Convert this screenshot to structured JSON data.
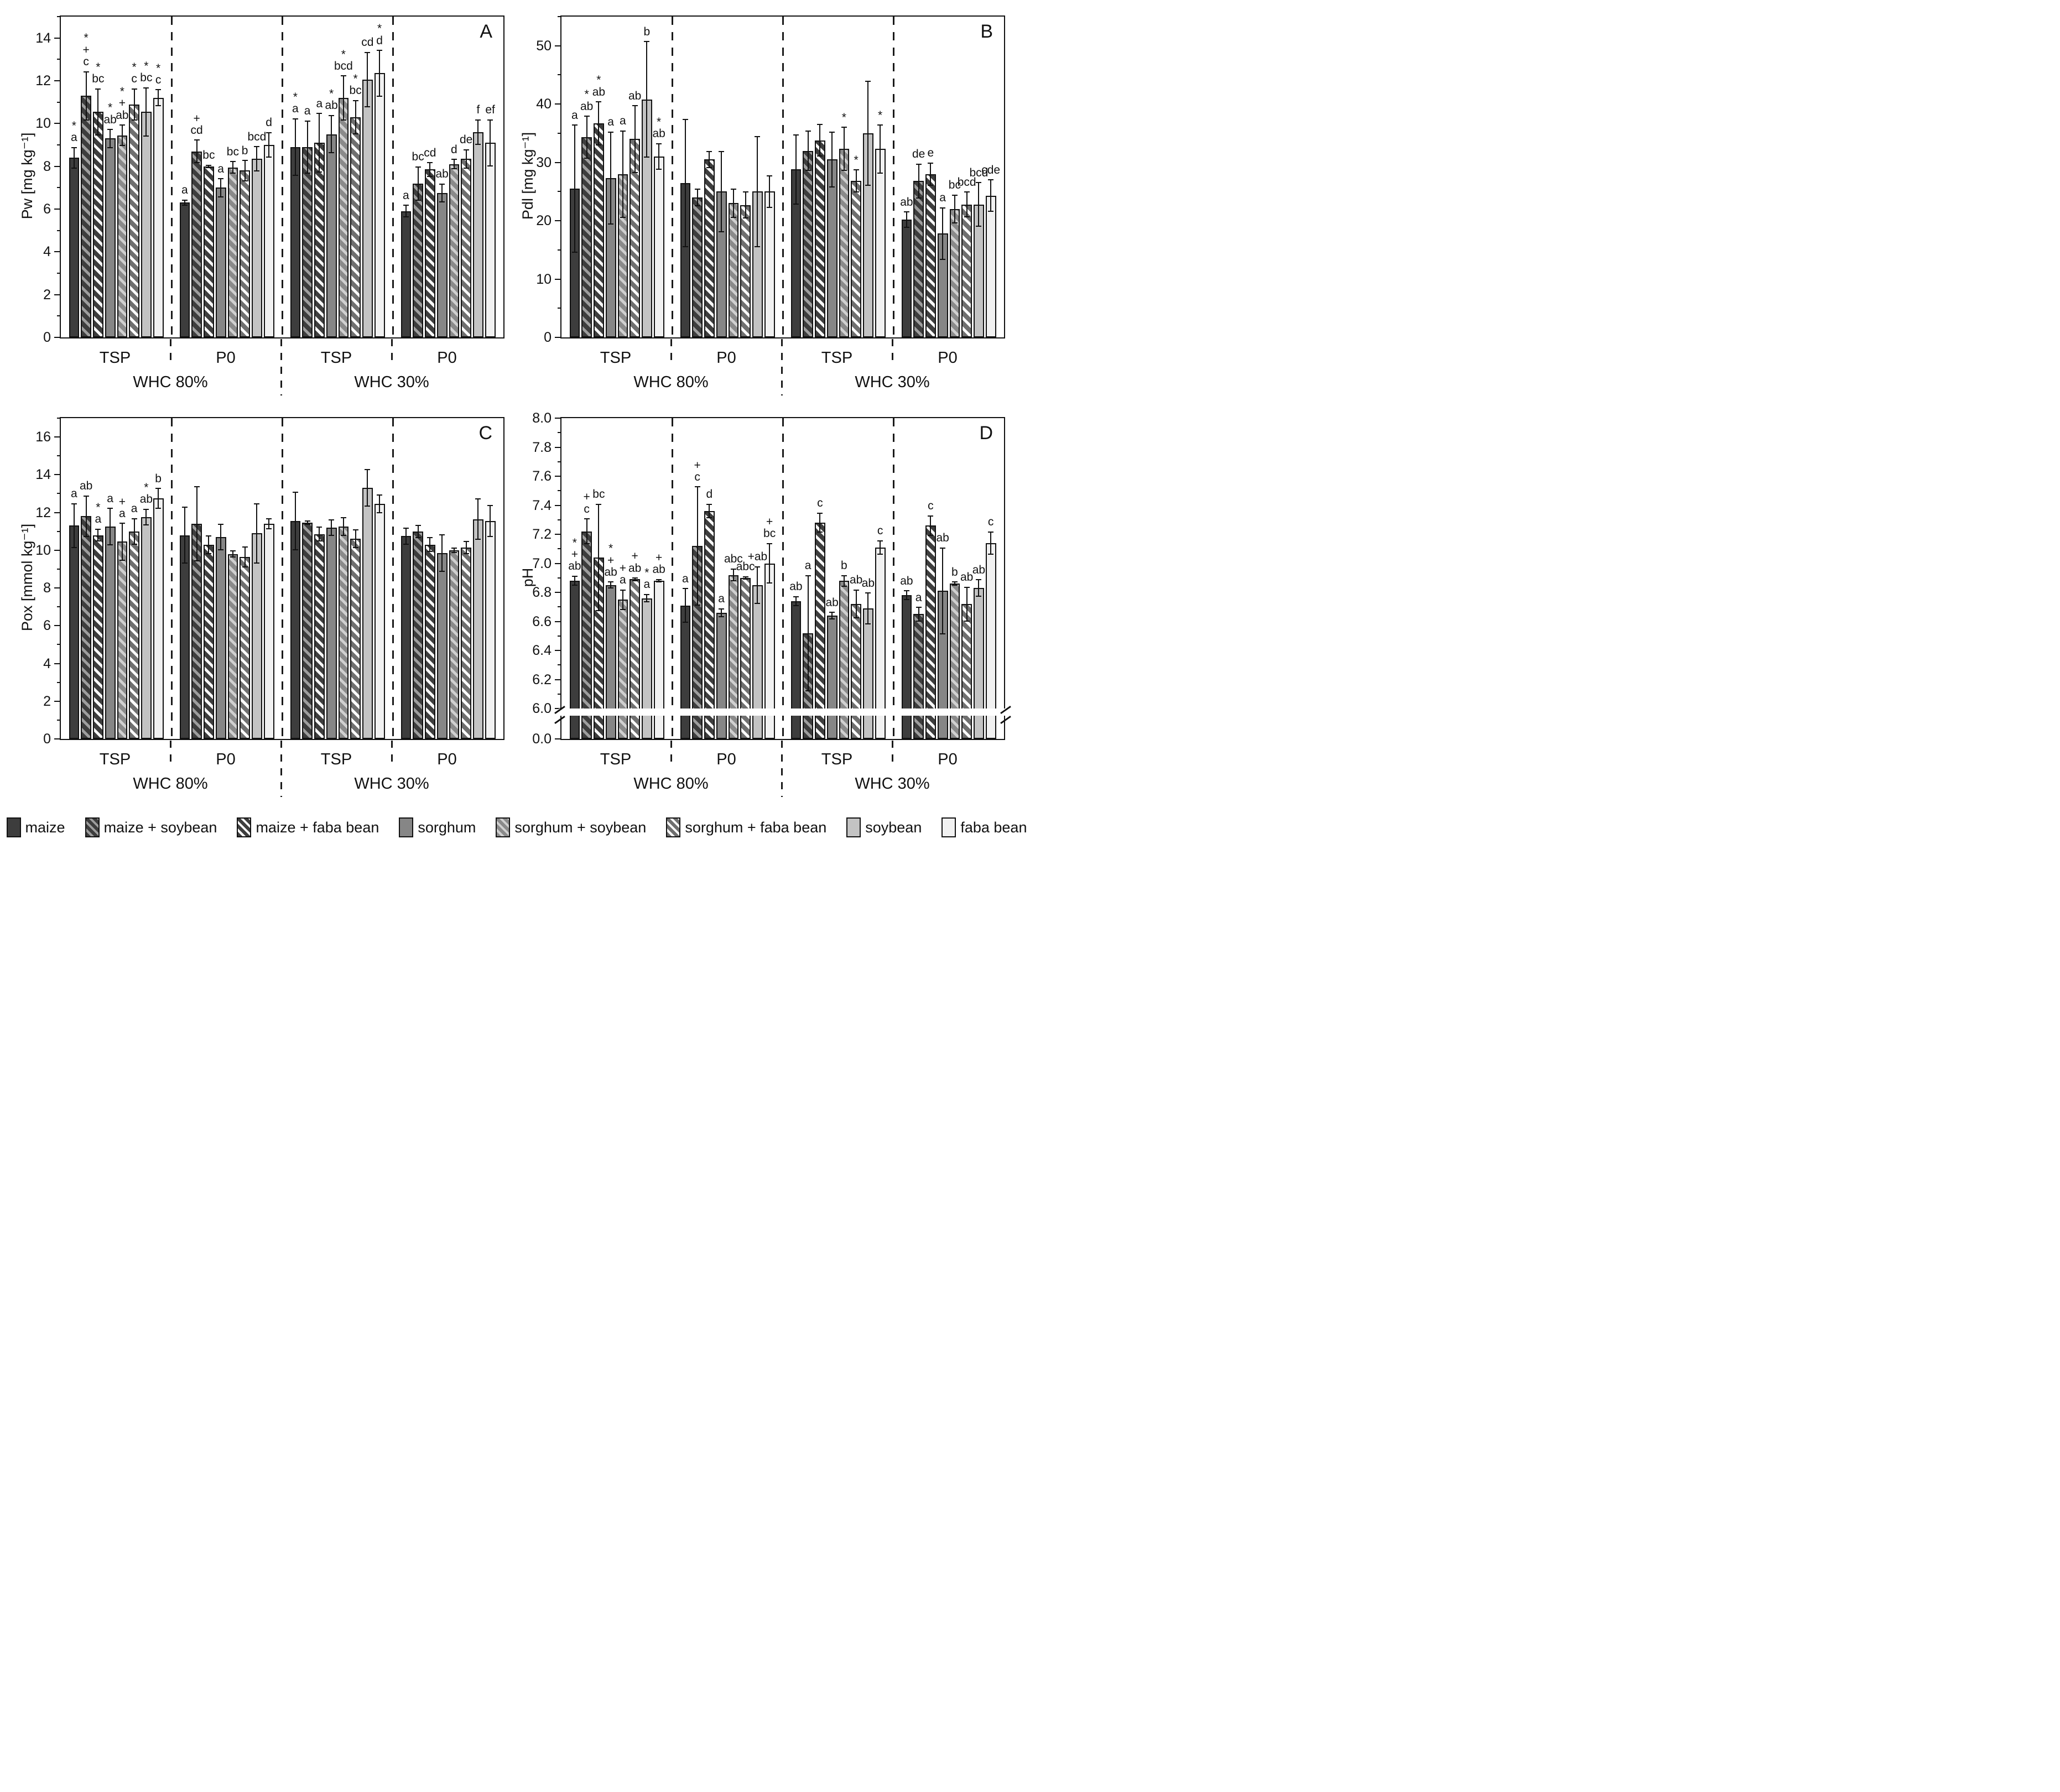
{
  "figure_colors": {
    "axis": "#111111",
    "background": "#ffffff",
    "separator": "#1a1a1a"
  },
  "legend": {
    "items": [
      {
        "label": "maize",
        "pattern": "solid",
        "fill": "#3d3d3d",
        "stripe": null
      },
      {
        "label": "maize + soybean",
        "pattern": "hatch",
        "fill": "#3d3d3d",
        "stripe": "#9e9e9e"
      },
      {
        "label": "maize + faba bean",
        "pattern": "hatch",
        "fill": "#3d3d3d",
        "stripe": "#f8f8f8"
      },
      {
        "label": "sorghum",
        "pattern": "solid",
        "fill": "#868686",
        "stripe": null
      },
      {
        "label": "sorghum + soybean",
        "pattern": "hatch",
        "fill": "#8a8a8a",
        "stripe": "#d0d0d0"
      },
      {
        "label": "sorghum + faba bean",
        "pattern": "hatch",
        "fill": "#6f6f6f",
        "stripe": "#fbfbfb"
      },
      {
        "label": "soybean",
        "pattern": "solid",
        "fill": "#c3c3c3",
        "stripe": null
      },
      {
        "label": "faba bean",
        "pattern": "solid",
        "fill": "#f1f1f1",
        "stripe": null
      }
    ]
  },
  "chart_data": [
    {
      "type": "bar",
      "letter": "A",
      "ylabel": "Pw [mg kg⁻¹]",
      "ylim": [
        0,
        15
      ],
      "yticks": [
        {
          "v": 0,
          "label": "0"
        },
        {
          "v": 2,
          "label": "2"
        },
        {
          "v": 4,
          "label": "4"
        },
        {
          "v": 6,
          "label": "6"
        },
        {
          "v": 8,
          "label": "8"
        },
        {
          "v": 10,
          "label": "10"
        },
        {
          "v": 12,
          "label": "12"
        },
        {
          "v": 14,
          "label": "14"
        }
      ],
      "minor_step": 1,
      "broken_axis": false,
      "series": [
        "maize",
        "maize + soybean",
        "maize + faba bean",
        "sorghum",
        "sorghum + soybean",
        "sorghum + faba bean",
        "soybean",
        "faba bean"
      ],
      "whc_labels": [
        "WHC 80%",
        "WHC 30%"
      ],
      "groups": [
        {
          "label": "TSP",
          "whc": "WHC 80%",
          "values": [
            8.4,
            11.3,
            10.55,
            9.3,
            9.45,
            10.9,
            10.55,
            11.2
          ],
          "errors": [
            0.5,
            1.15,
            1.1,
            0.45,
            0.5,
            0.75,
            1.15,
            0.4
          ],
          "annotations": [
            "*\na",
            "*\n+\nc",
            "*\nbc",
            "*\nab",
            "*\n+\nab",
            "*\nc",
            "*\nbc",
            "*\nc"
          ]
        },
        {
          "label": "P0",
          "whc": "WHC 80%",
          "values": [
            6.3,
            8.7,
            8.0,
            7.0,
            7.95,
            7.8,
            8.35,
            9.0
          ],
          "errors": [
            0.15,
            0.55,
            0.08,
            0.45,
            0.3,
            0.5,
            0.6,
            0.6
          ],
          "annotations": [
            "a",
            "+\ncd",
            "bc",
            "a",
            "bc",
            "b",
            "bcd",
            "d"
          ]
        },
        {
          "label": "TSP",
          "whc": "WHC 30%",
          "values": [
            8.9,
            8.9,
            9.1,
            9.5,
            11.2,
            10.3,
            12.05,
            12.35
          ],
          "errors": [
            1.35,
            1.25,
            1.4,
            0.9,
            1.05,
            0.8,
            1.3,
            1.1
          ],
          "annotations": [
            "*\na",
            "a",
            "a",
            "*\nab",
            "*\nbcd",
            "*\nbc",
            "cd",
            "*\nd"
          ]
        },
        {
          "label": "P0",
          "whc": "WHC 30%",
          "values": [
            5.9,
            7.2,
            7.85,
            6.75,
            8.1,
            8.35,
            9.6,
            9.1
          ],
          "errors": [
            0.3,
            0.8,
            0.35,
            0.45,
            0.25,
            0.45,
            0.6,
            1.1
          ],
          "annotations": [
            "a",
            "bc",
            "cd",
            "ab",
            "d",
            "de",
            "f",
            "ef"
          ]
        }
      ]
    },
    {
      "type": "bar",
      "letter": "B",
      "ylabel": "Pdl [mg kg⁻¹]",
      "ylim": [
        0,
        55
      ],
      "yticks": [
        {
          "v": 0,
          "label": "0"
        },
        {
          "v": 10,
          "label": "10"
        },
        {
          "v": 20,
          "label": "20"
        },
        {
          "v": 30,
          "label": "30"
        },
        {
          "v": 40,
          "label": "40"
        },
        {
          "v": 50,
          "label": "50"
        }
      ],
      "minor_step": 5,
      "broken_axis": false,
      "series": [
        "maize",
        "maize + soybean",
        "maize + faba bean",
        "sorghum",
        "sorghum + soybean",
        "sorghum + faba bean",
        "soybean",
        "faba bean"
      ],
      "whc_labels": [
        "WHC 80%",
        "WHC 30%"
      ],
      "groups": [
        {
          "label": "TSP",
          "whc": "WHC 80%",
          "values": [
            25.5,
            34.3,
            36.7,
            27.3,
            28.0,
            34.0,
            40.8,
            31.0
          ],
          "errors": [
            11.0,
            3.7,
            3.8,
            8.0,
            7.5,
            5.8,
            10.0,
            2.3
          ],
          "annotations": [
            "a",
            "*\nab",
            "*\nab",
            "a",
            "a",
            "ab",
            "b",
            "*\nab"
          ]
        },
        {
          "label": "P0",
          "whc": "WHC 80%",
          "values": [
            26.5,
            24.0,
            30.5,
            25.0,
            23.0,
            22.7,
            25.0,
            25.0
          ],
          "errors": [
            11.0,
            1.5,
            1.5,
            7.0,
            2.5,
            2.3,
            9.5,
            2.8
          ],
          "annotations": [
            "",
            "",
            "",
            "",
            "",
            "",
            "",
            ""
          ]
        },
        {
          "label": "TSP",
          "whc": "WHC 30%",
          "values": [
            28.8,
            32.0,
            33.8,
            30.5,
            32.3,
            26.8,
            35.0,
            32.3
          ],
          "errors": [
            6.0,
            3.5,
            2.8,
            4.8,
            3.8,
            2.0,
            9.0,
            4.2
          ],
          "annotations": [
            "",
            "",
            "",
            "",
            "*",
            "*",
            "",
            "*"
          ]
        },
        {
          "label": "P0",
          "whc": "WHC 30%",
          "values": [
            20.2,
            26.8,
            28.0,
            17.8,
            22.0,
            22.8,
            22.8,
            24.3
          ],
          "errors": [
            1.4,
            3.0,
            2.0,
            4.5,
            2.5,
            2.2,
            3.8,
            2.8
          ],
          "annotations": [
            "ab",
            "de",
            "e",
            "a",
            "bc",
            "bcd",
            "bcd",
            "cde"
          ]
        }
      ]
    },
    {
      "type": "bar",
      "letter": "C",
      "ylabel": "Pox [mmol kg⁻¹]",
      "ylim": [
        0,
        17
      ],
      "yticks": [
        {
          "v": 0,
          "label": "0"
        },
        {
          "v": 2,
          "label": "2"
        },
        {
          "v": 4,
          "label": "4"
        },
        {
          "v": 6,
          "label": "6"
        },
        {
          "v": 8,
          "label": "8"
        },
        {
          "v": 10,
          "label": "10"
        },
        {
          "v": 12,
          "label": "12"
        },
        {
          "v": 14,
          "label": "14"
        },
        {
          "v": 16,
          "label": "16"
        }
      ],
      "minor_step": 1,
      "broken_axis": false,
      "series": [
        "maize",
        "maize + soybean",
        "maize + faba bean",
        "sorghum",
        "sorghum + soybean",
        "sorghum + faba bean",
        "soybean",
        "faba bean"
      ],
      "whc_labels": [
        "WHC 80%",
        "WHC 30%"
      ],
      "groups": [
        {
          "label": "TSP",
          "whc": "WHC 80%",
          "values": [
            11.3,
            11.8,
            10.8,
            11.25,
            10.45,
            11.0,
            11.75,
            12.75
          ],
          "errors": [
            1.2,
            1.1,
            0.35,
            1.0,
            1.0,
            0.7,
            0.45,
            0.55
          ],
          "annotations": [
            "a",
            "ab",
            "*\na",
            "a",
            "+\na",
            "a",
            "*\nab",
            "b"
          ]
        },
        {
          "label": "P0",
          "whc": "WHC 80%",
          "values": [
            10.8,
            11.4,
            10.3,
            10.7,
            9.8,
            9.65,
            10.9,
            11.4
          ],
          "errors": [
            1.5,
            2.0,
            0.5,
            0.7,
            0.2,
            0.55,
            1.6,
            0.3
          ],
          "annotations": [
            "",
            "",
            "",
            "",
            "",
            "",
            "",
            ""
          ]
        },
        {
          "label": "TSP",
          "whc": "WHC 30%",
          "values": [
            11.55,
            11.45,
            10.85,
            11.2,
            11.25,
            10.6,
            13.3,
            12.45
          ],
          "errors": [
            1.55,
            0.12,
            0.4,
            0.45,
            0.5,
            0.5,
            1.0,
            0.5
          ],
          "annotations": [
            "",
            "",
            "",
            "",
            "",
            "",
            "",
            ""
          ]
        },
        {
          "label": "P0",
          "whc": "WHC 30%",
          "values": [
            10.75,
            11.0,
            10.3,
            9.85,
            10.0,
            10.15,
            11.65,
            11.55
          ],
          "errors": [
            0.45,
            0.35,
            0.4,
            1.0,
            0.15,
            0.35,
            1.1,
            0.85
          ],
          "annotations": [
            "",
            "",
            "",
            "",
            "",
            "",
            "",
            ""
          ]
        }
      ]
    },
    {
      "type": "bar",
      "letter": "D",
      "ylabel": "pH",
      "ylim": [
        6.0,
        8.0
      ],
      "yticks": [
        {
          "v": 6.0,
          "label": "6.0"
        },
        {
          "v": 6.2,
          "label": "6.2"
        },
        {
          "v": 6.4,
          "label": "6.4"
        },
        {
          "v": 6.6,
          "label": "6.6"
        },
        {
          "v": 6.8,
          "label": "6.8"
        },
        {
          "v": 7.0,
          "label": "7.0"
        },
        {
          "v": 7.2,
          "label": "7.2"
        },
        {
          "v": 7.4,
          "label": "7.4"
        },
        {
          "v": 7.6,
          "label": "7.6"
        },
        {
          "v": 7.8,
          "label": "7.8"
        },
        {
          "v": 8.0,
          "label": "8.0"
        }
      ],
      "minor_step": 0.1,
      "broken_axis": true,
      "broken_base_label": "0.0",
      "series": [
        "maize",
        "maize + soybean",
        "maize + faba bean",
        "sorghum",
        "sorghum + soybean",
        "sorghum + faba bean",
        "soybean",
        "faba bean"
      ],
      "whc_labels": [
        "WHC 80%",
        "WHC 30%"
      ],
      "groups": [
        {
          "label": "TSP",
          "whc": "WHC 80%",
          "values": [
            6.88,
            7.22,
            7.04,
            6.85,
            6.75,
            6.89,
            6.76,
            6.88
          ],
          "errors": [
            0.035,
            0.09,
            0.37,
            0.025,
            0.07,
            0.012,
            0.03,
            0.012
          ],
          "annotations": [
            "*\n+\nab",
            "+\nc",
            "bc",
            "*\n+\nab",
            "+\na",
            "+\nab",
            "*\na",
            "+\nab"
          ]
        },
        {
          "label": "P0",
          "whc": "WHC 80%",
          "values": [
            6.71,
            7.12,
            7.36,
            6.66,
            6.92,
            6.9,
            6.85,
            7.0
          ],
          "errors": [
            0.12,
            0.41,
            0.05,
            0.03,
            0.045,
            0.012,
            0.13,
            0.14
          ],
          "annotations": [
            "a",
            "+\nc",
            "d",
            "a",
            "abc",
            "abc",
            "+ab",
            "+\nbc"
          ]
        },
        {
          "label": "TSP",
          "whc": "WHC 30%",
          "values": [
            6.74,
            6.52,
            7.28,
            6.64,
            6.88,
            6.72,
            6.69,
            7.11
          ],
          "errors": [
            0.035,
            0.4,
            0.07,
            0.025,
            0.04,
            0.1,
            0.11,
            0.05
          ],
          "annotations": [
            "ab",
            "a",
            "c",
            "ab",
            "b",
            "ab",
            "ab",
            "c"
          ]
        },
        {
          "label": "P0",
          "whc": "WHC 30%",
          "values": [
            6.78,
            6.65,
            7.26,
            6.81,
            6.86,
            6.72,
            6.83,
            7.14
          ],
          "errors": [
            0.035,
            0.05,
            0.07,
            0.3,
            0.015,
            0.12,
            0.06,
            0.08
          ],
          "annotations": [
            "ab",
            "a",
            "c",
            "ab",
            "b",
            "ab",
            "ab",
            "c"
          ]
        }
      ]
    }
  ]
}
